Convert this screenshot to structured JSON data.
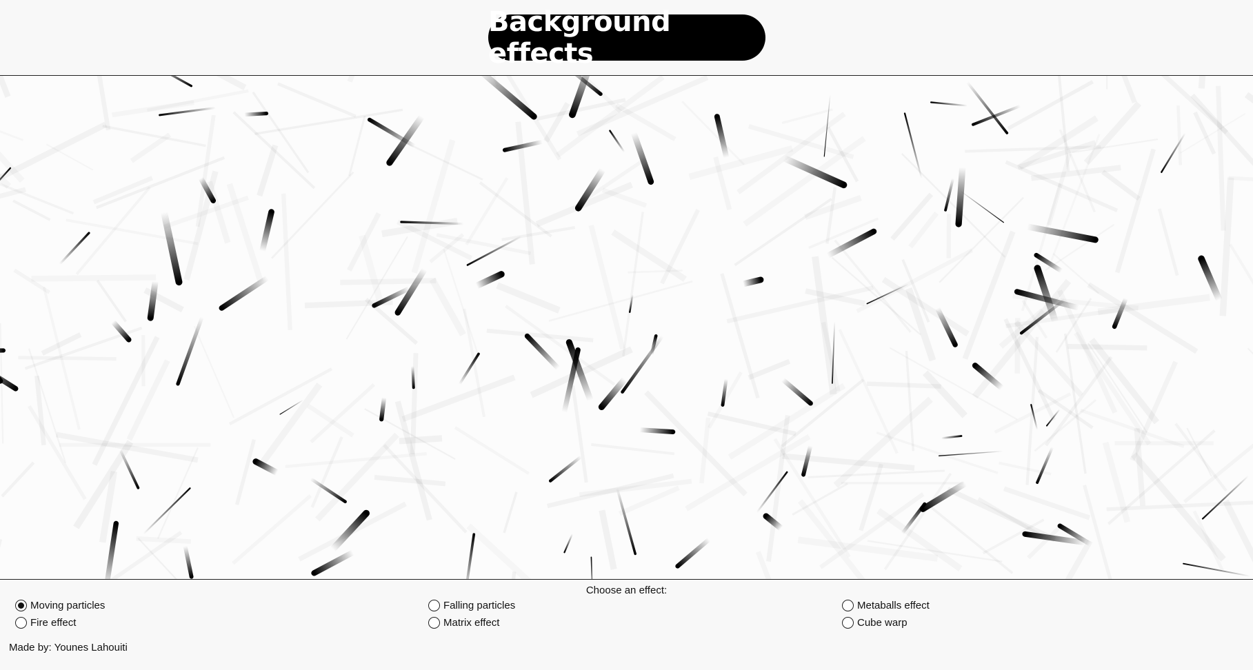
{
  "header": {
    "title": "Background effects"
  },
  "controls": {
    "prompt": "Choose an effect:",
    "options": [
      {
        "label": "Moving particles",
        "checked": true
      },
      {
        "label": "Falling particles",
        "checked": false
      },
      {
        "label": "Metaballs effect",
        "checked": false
      },
      {
        "label": "Fire effect",
        "checked": false
      },
      {
        "label": "Matrix effect",
        "checked": false
      },
      {
        "label": "Cube warp",
        "checked": false
      }
    ]
  },
  "footer": {
    "credit": "Made by: Younes Lahouiti"
  }
}
